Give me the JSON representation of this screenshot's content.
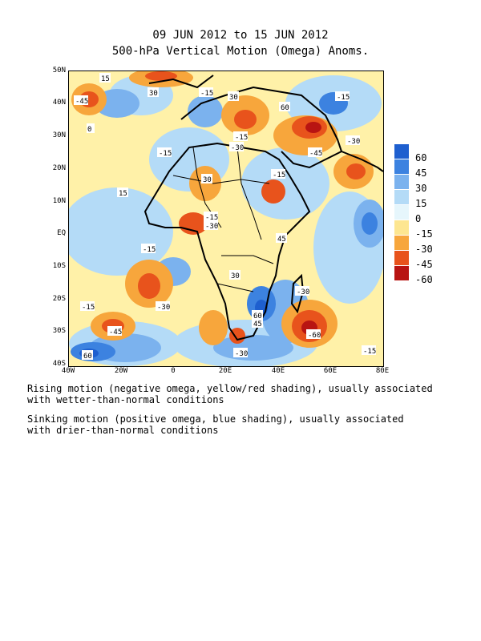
{
  "header": {
    "date_range": "09 JUN 2012 to 15 JUN 2012",
    "subtitle": "500-hPa Vertical Motion (Omega) Anoms."
  },
  "map": {
    "lat_labels": [
      "50N",
      "40N",
      "30N",
      "20N",
      "10N",
      "EQ",
      "10S",
      "20S",
      "30S",
      "40S"
    ],
    "lon_labels": [
      "40W",
      "20W",
      "0",
      "20E",
      "40E",
      "60E",
      "80E"
    ],
    "contour_labels": [
      "15",
      "-45",
      "30",
      "-15",
      "0",
      "-30",
      "-60",
      "45",
      "60"
    ]
  },
  "legend": {
    "levels": [
      "60",
      "45",
      "30",
      "15",
      "0",
      "-15",
      "-30",
      "-45",
      "-60"
    ],
    "colors": [
      "#1e5fcf",
      "#3c82e0",
      "#7bb2ee",
      "#b4dbf7",
      "#e6f6fc",
      "#fde690",
      "#f7a63c",
      "#e8531c",
      "#b81412"
    ]
  },
  "notes": {
    "rising_line1": "Rising motion (negative omega, yellow/red shading), usually associated",
    "rising_line2": "with wetter-than-normal conditions",
    "sinking_line1": "Sinking motion (positive omega, blue shading), usually associated",
    "sinking_line2": "with drier-than-normal conditions"
  }
}
